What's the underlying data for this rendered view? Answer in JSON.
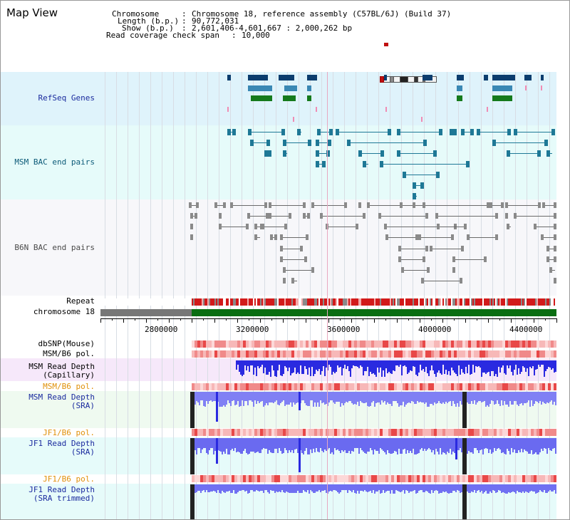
{
  "panel_title": "Map View",
  "info": {
    "chromosome_label": "Chromosome",
    "chromosome_value": "Chromosome 18, reference assembly (C57BL/6J) (Build 37)",
    "length_label": "Length (b.p.)",
    "length_value": "90,772,031",
    "show_label": "Show (b.p.)",
    "show_value": "2,601,406-4,601,667 : 2,000,262 bp",
    "span_label": "Read coverage check span",
    "span_value": "10,000"
  },
  "tracks": {
    "refseq": "RefSeq Genes",
    "msm_bac": "MSM BAC end pairs",
    "b6n_bac": "B6N BAC end pairs",
    "repeat": "Repeat",
    "chromosome": "chromosome 18",
    "dbsnp": "dbSNP(Mouse)",
    "msm_b6_pol_1": "MSM/B6 pol.",
    "msm_depth_cap": "MSM Read Depth\n(Capillary)",
    "msm_b6_pol_2": "MSM/B6 pol.",
    "msm_depth_sra": "MSM Read Depth\n(SRA)",
    "jf1_b6_pol_1": "JF1/B6 pol.",
    "jf1_depth_sra": "JF1 Read Depth\n(SRA)",
    "jf1_b6_pol_2": "JF1/B6 pol.",
    "jf1_depth_trim": "JF1 Read Depth\n(SRA trimmed)"
  },
  "axis_ticks": [
    "2800000",
    "3200000",
    "3600000",
    "4000000",
    "4400000"
  ],
  "colors": {
    "refseq_bg": "#dff3fb",
    "msm_bg": "#e6fbfa",
    "b6n_bg": "#f7f7fa",
    "gene_navy": "#0b3d6e",
    "gene_blue": "#3a88b4",
    "gene_green": "#157a1c",
    "msm_feature": "#1e7896",
    "b6n_feature": "#6a6a6a",
    "chrom_green": "#0a6e12",
    "chrom_gray": "#777777",
    "label_navy": "#1a2a9e",
    "label_orange": "#e0900a",
    "label_teal": "#0c5a78"
  }
}
